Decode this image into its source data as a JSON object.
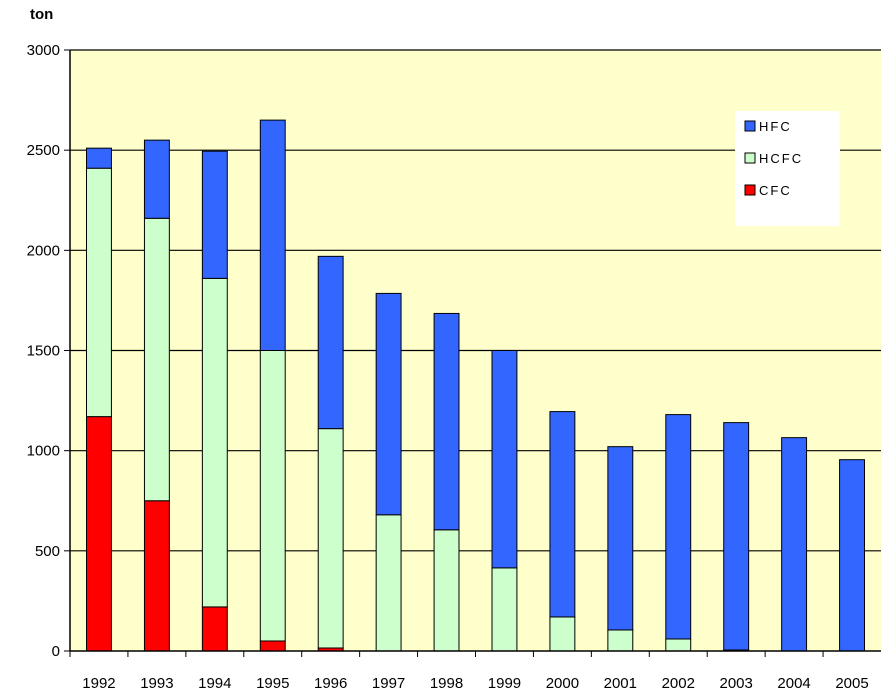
{
  "chart_data": {
    "type": "bar",
    "stacked": true,
    "title": "",
    "ylabel": "ton",
    "xlabel": "",
    "ylim": [
      0,
      3000
    ],
    "yticks": [
      "0",
      "500",
      "1000",
      "1500",
      "2000",
      "2500",
      "3000"
    ],
    "grid": true,
    "legend_position": "top-right",
    "categories": [
      "1992",
      "1993",
      "1994",
      "1995",
      "1996",
      "1997",
      "1998",
      "1999",
      "2000",
      "2001",
      "2002",
      "2003",
      "2004",
      "2005"
    ],
    "series": [
      {
        "name": "CFC",
        "color": "#ff0000",
        "values": [
          1170,
          750,
          220,
          50,
          15,
          0,
          0,
          0,
          0,
          0,
          0,
          5,
          0,
          0
        ]
      },
      {
        "name": "HCFC",
        "color": "#ccffcc",
        "values": [
          1240,
          1410,
          1640,
          1450,
          1095,
          680,
          605,
          415,
          170,
          105,
          60,
          0,
          0,
          0
        ]
      },
      {
        "name": "HFC",
        "color": "#3366ff",
        "values": [
          100,
          390,
          635,
          1150,
          860,
          1105,
          1080,
          1085,
          1025,
          915,
          1120,
          1135,
          1065,
          955
        ]
      }
    ],
    "legend_order": [
      "HFC",
      "HCFC",
      "CFC"
    ],
    "plot_background": "#ffffcc"
  }
}
